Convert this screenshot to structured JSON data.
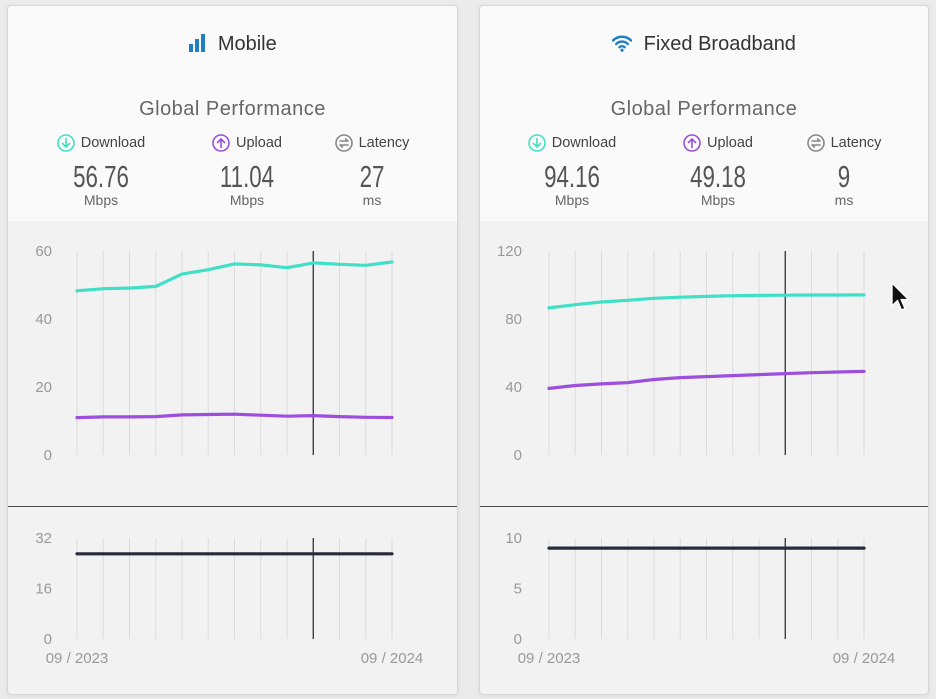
{
  "cards": [
    {
      "id": "mobile",
      "title": "Mobile",
      "icon": "signal-bars-icon",
      "subheading": "Global Performance",
      "metrics": {
        "download": {
          "label": "Download",
          "value": "56.76",
          "unit": "Mbps"
        },
        "upload": {
          "label": "Upload",
          "value": "11.04",
          "unit": "Mbps"
        },
        "latency": {
          "label": "Latency",
          "value": "27",
          "unit": "ms"
        }
      },
      "speed_chart": {
        "y_ticks": [
          "60",
          "40",
          "20",
          "0"
        ],
        "y_max": 60
      },
      "latency_chart": {
        "y_ticks": [
          "32",
          "16",
          "0"
        ],
        "y_max": 32
      },
      "x_labels": {
        "start": "09 / 2023",
        "end": "09 / 2024"
      }
    },
    {
      "id": "fixed",
      "title": "Fixed Broadband",
      "icon": "wifi-icon",
      "subheading": "Global Performance",
      "metrics": {
        "download": {
          "label": "Download",
          "value": "94.16",
          "unit": "Mbps"
        },
        "upload": {
          "label": "Upload",
          "value": "49.18",
          "unit": "Mbps"
        },
        "latency": {
          "label": "Latency",
          "value": "9",
          "unit": "ms"
        }
      },
      "speed_chart": {
        "y_ticks": [
          "120",
          "80",
          "40",
          "0"
        ],
        "y_max": 120
      },
      "latency_chart": {
        "y_ticks": [
          "10",
          "5",
          "0"
        ],
        "y_max": 10
      },
      "x_labels": {
        "start": "09 / 2023",
        "end": "09 / 2024"
      }
    }
  ],
  "colors": {
    "download": "#3fe0c5",
    "upload": "#9b4fdc",
    "latency_line": "#262a3a",
    "icon_blue": "#1f7fc0"
  },
  "chart_data": [
    {
      "type": "line",
      "title": "",
      "months": [
        "09/2023",
        "10/2023",
        "11/2023",
        "12/2023",
        "01/2024",
        "02/2024",
        "03/2024",
        "04/2024",
        "05/2024",
        "06/2024",
        "07/2024",
        "08/2024",
        "09/2024"
      ],
      "ylim": [
        0,
        60
      ],
      "series": [
        {
          "name": "Download",
          "values": [
            48.3,
            48.9,
            49.1,
            49.6,
            53.2,
            54.5,
            56.2,
            55.9,
            55.1,
            56.5,
            56.1,
            55.8,
            56.76
          ]
        },
        {
          "name": "Upload",
          "values": [
            11.0,
            11.2,
            11.2,
            11.3,
            11.8,
            11.9,
            12.0,
            11.7,
            11.4,
            11.6,
            11.3,
            11.1,
            11.04
          ]
        }
      ],
      "crosshair_month": "06/2024"
    },
    {
      "type": "line",
      "title": "",
      "months": [
        "09/2023",
        "10/2023",
        "11/2023",
        "12/2023",
        "01/2024",
        "02/2024",
        "03/2024",
        "04/2024",
        "05/2024",
        "06/2024",
        "07/2024",
        "08/2024",
        "09/2024"
      ],
      "ylim": [
        0,
        32
      ],
      "series": [
        {
          "name": "Latency",
          "values": [
            27,
            27,
            27,
            27,
            27,
            27,
            27,
            27,
            27,
            27,
            27,
            27,
            27
          ]
        }
      ],
      "crosshair_month": "06/2024"
    },
    {
      "type": "line",
      "title": "",
      "months": [
        "09/2023",
        "10/2023",
        "11/2023",
        "12/2023",
        "01/2024",
        "02/2024",
        "03/2024",
        "04/2024",
        "05/2024",
        "06/2024",
        "07/2024",
        "08/2024",
        "09/2024"
      ],
      "ylim": [
        0,
        120
      ],
      "series": [
        {
          "name": "Download",
          "values": [
            86.5,
            88.4,
            90.0,
            91.0,
            92.2,
            92.8,
            93.3,
            93.7,
            93.9,
            94.0,
            94.1,
            94.1,
            94.16
          ]
        },
        {
          "name": "Upload",
          "values": [
            39.2,
            40.9,
            41.8,
            42.6,
            44.4,
            45.5,
            46.1,
            46.7,
            47.3,
            47.9,
            48.4,
            48.8,
            49.18
          ]
        }
      ],
      "crosshair_month": "06/2024"
    },
    {
      "type": "line",
      "title": "",
      "months": [
        "09/2023",
        "10/2023",
        "11/2023",
        "12/2023",
        "01/2024",
        "02/2024",
        "03/2024",
        "04/2024",
        "05/2024",
        "06/2024",
        "07/2024",
        "08/2024",
        "09/2024"
      ],
      "ylim": [
        0,
        10
      ],
      "series": [
        {
          "name": "Latency",
          "values": [
            9,
            9,
            9,
            9,
            9,
            9,
            9,
            9,
            9,
            9,
            9,
            9,
            9
          ]
        }
      ],
      "crosshair_month": "06/2024"
    }
  ]
}
